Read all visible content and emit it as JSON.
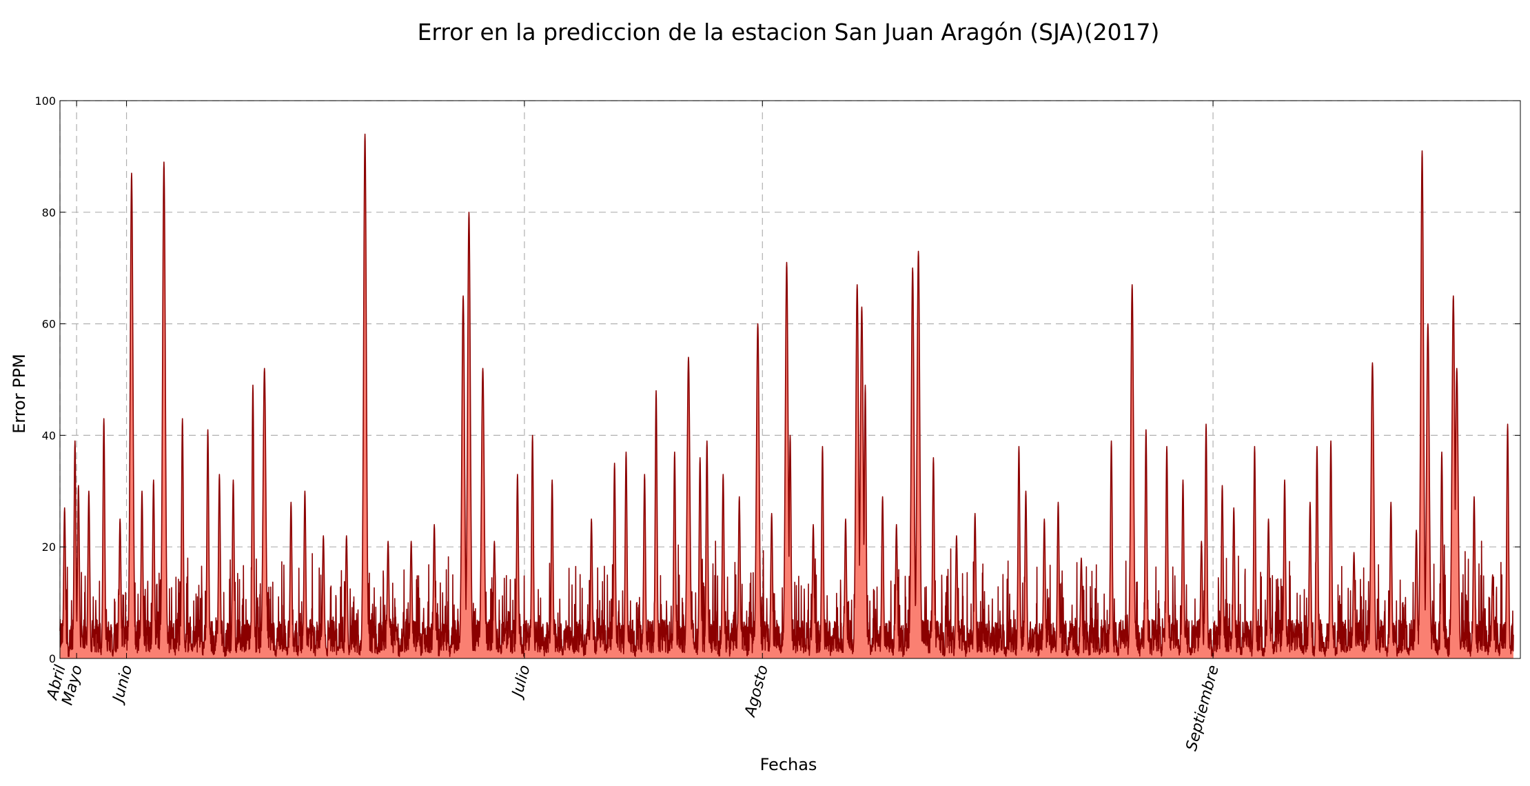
{
  "chart_data": {
    "type": "area",
    "title": "Error en la prediccion de la estacion San Juan Aragón (SJA)(2017)",
    "xlabel": "Fechas",
    "ylabel": "Error PPM",
    "ylim": [
      0,
      100
    ],
    "yticks": [
      0,
      20,
      40,
      60,
      80,
      100
    ],
    "xlim_hours": [
      0,
      6320
    ],
    "xticks": [
      {
        "label": "Abril",
        "hour": 0
      },
      {
        "label": "Mayo",
        "hour": 72
      },
      {
        "label": "Junio",
        "hour": 288
      },
      {
        "label": "Julio",
        "hour": 2010
      },
      {
        "label": "Agosto",
        "hour": 3040
      },
      {
        "label": "Septiembre",
        "hour": 4990
      }
    ],
    "grid": true,
    "fill_color": "#fa8072",
    "line_color": "#8b0000",
    "data_end_hour": 6290,
    "peaks": [
      {
        "hour": 20,
        "value": 27
      },
      {
        "hour": 65,
        "value": 39
      },
      {
        "hour": 80,
        "value": 31
      },
      {
        "hour": 125,
        "value": 30
      },
      {
        "hour": 190,
        "value": 43
      },
      {
        "hour": 260,
        "value": 25
      },
      {
        "hour": 310,
        "value": 87
      },
      {
        "hour": 355,
        "value": 30
      },
      {
        "hour": 405,
        "value": 32
      },
      {
        "hour": 450,
        "value": 89
      },
      {
        "hour": 530,
        "value": 43
      },
      {
        "hour": 640,
        "value": 41
      },
      {
        "hour": 690,
        "value": 33
      },
      {
        "hour": 750,
        "value": 32
      },
      {
        "hour": 835,
        "value": 49
      },
      {
        "hour": 885,
        "value": 52
      },
      {
        "hour": 1000,
        "value": 28
      },
      {
        "hour": 1060,
        "value": 30
      },
      {
        "hour": 1140,
        "value": 22
      },
      {
        "hour": 1240,
        "value": 22
      },
      {
        "hour": 1320,
        "value": 94
      },
      {
        "hour": 1420,
        "value": 21
      },
      {
        "hour": 1520,
        "value": 21
      },
      {
        "hour": 1620,
        "value": 24
      },
      {
        "hour": 1745,
        "value": 65
      },
      {
        "hour": 1770,
        "value": 80
      },
      {
        "hour": 1830,
        "value": 52
      },
      {
        "hour": 1880,
        "value": 21
      },
      {
        "hour": 1980,
        "value": 33
      },
      {
        "hour": 2045,
        "value": 40
      },
      {
        "hour": 2130,
        "value": 32
      },
      {
        "hour": 2300,
        "value": 25
      },
      {
        "hour": 2400,
        "value": 35
      },
      {
        "hour": 2450,
        "value": 37
      },
      {
        "hour": 2530,
        "value": 33
      },
      {
        "hour": 2580,
        "value": 48
      },
      {
        "hour": 2660,
        "value": 37
      },
      {
        "hour": 2720,
        "value": 54
      },
      {
        "hour": 2770,
        "value": 36
      },
      {
        "hour": 2800,
        "value": 39
      },
      {
        "hour": 2870,
        "value": 33
      },
      {
        "hour": 2940,
        "value": 29
      },
      {
        "hour": 3020,
        "value": 60
      },
      {
        "hour": 3080,
        "value": 26
      },
      {
        "hour": 3145,
        "value": 71
      },
      {
        "hour": 3160,
        "value": 40
      },
      {
        "hour": 3260,
        "value": 24
      },
      {
        "hour": 3300,
        "value": 38
      },
      {
        "hour": 3400,
        "value": 25
      },
      {
        "hour": 3450,
        "value": 67
      },
      {
        "hour": 3470,
        "value": 63
      },
      {
        "hour": 3485,
        "value": 49
      },
      {
        "hour": 3560,
        "value": 29
      },
      {
        "hour": 3620,
        "value": 24
      },
      {
        "hour": 3690,
        "value": 70
      },
      {
        "hour": 3715,
        "value": 73
      },
      {
        "hour": 3780,
        "value": 36
      },
      {
        "hour": 3880,
        "value": 22
      },
      {
        "hour": 3960,
        "value": 26
      },
      {
        "hour": 4150,
        "value": 38
      },
      {
        "hour": 4180,
        "value": 30
      },
      {
        "hour": 4260,
        "value": 25
      },
      {
        "hour": 4320,
        "value": 28
      },
      {
        "hour": 4420,
        "value": 18
      },
      {
        "hour": 4550,
        "value": 39
      },
      {
        "hour": 4640,
        "value": 67
      },
      {
        "hour": 4700,
        "value": 41
      },
      {
        "hour": 4790,
        "value": 38
      },
      {
        "hour": 4860,
        "value": 32
      },
      {
        "hour": 4940,
        "value": 21
      },
      {
        "hour": 4960,
        "value": 42
      },
      {
        "hour": 5030,
        "value": 31
      },
      {
        "hour": 5080,
        "value": 27
      },
      {
        "hour": 5170,
        "value": 38
      },
      {
        "hour": 5230,
        "value": 25
      },
      {
        "hour": 5300,
        "value": 32
      },
      {
        "hour": 5410,
        "value": 28
      },
      {
        "hour": 5440,
        "value": 38
      },
      {
        "hour": 5500,
        "value": 39
      },
      {
        "hour": 5600,
        "value": 19
      },
      {
        "hour": 5680,
        "value": 53
      },
      {
        "hour": 5760,
        "value": 28
      },
      {
        "hour": 5870,
        "value": 23
      },
      {
        "hour": 5895,
        "value": 91
      },
      {
        "hour": 5920,
        "value": 60
      },
      {
        "hour": 5980,
        "value": 37
      },
      {
        "hour": 6030,
        "value": 65
      },
      {
        "hour": 6045,
        "value": 52
      },
      {
        "hour": 6120,
        "value": 29
      },
      {
        "hour": 6200,
        "value": 15
      },
      {
        "hour": 6265,
        "value": 42
      }
    ]
  }
}
